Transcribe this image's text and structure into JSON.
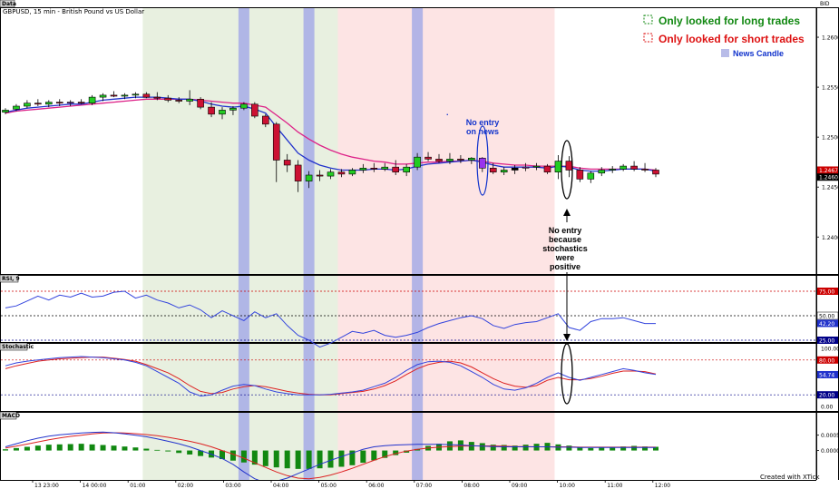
{
  "chart_data": {
    "type": "candlestick",
    "title": "GBPUSD, 15 min - British Pound vs US Dollar",
    "panel_label": "Data",
    "bid_label": "BID",
    "price_axis": {
      "ylim": [
        1.2363,
        1.263
      ],
      "ticks": [
        "1.2600",
        "1.2550",
        "1.2500",
        "1.2450",
        "1.2400"
      ]
    },
    "price_tags": [
      {
        "value": 1.2467,
        "text": "1.2467",
        "color": "#cc0000"
      },
      {
        "value": 1.246,
        "text": "1.2460",
        "color": "#000000"
      }
    ],
    "time_labels": [
      "13 23:00",
      "14 00:00",
      "01:00",
      "02:00",
      "03:00",
      "04:00",
      "05:00",
      "06:00",
      "07:00",
      "08:00",
      "09:00",
      "10:00",
      "11:00",
      "12:00"
    ],
    "candles": [
      {
        "o": 1.2525,
        "h": 1.2529,
        "l": 1.2523,
        "c": 1.2527
      },
      {
        "o": 1.2528,
        "h": 1.2533,
        "l": 1.2526,
        "c": 1.2531
      },
      {
        "o": 1.2531,
        "h": 1.2537,
        "l": 1.2529,
        "c": 1.2534
      },
      {
        "o": 1.2534,
        "h": 1.2538,
        "l": 1.2531,
        "c": 1.2533
      },
      {
        "o": 1.2533,
        "h": 1.2537,
        "l": 1.253,
        "c": 1.2535
      },
      {
        "o": 1.2535,
        "h": 1.2538,
        "l": 1.2531,
        "c": 1.2534
      },
      {
        "o": 1.2534,
        "h": 1.2537,
        "l": 1.2531,
        "c": 1.2535
      },
      {
        "o": 1.2535,
        "h": 1.2538,
        "l": 1.2533,
        "c": 1.2534
      },
      {
        "o": 1.2534,
        "h": 1.2542,
        "l": 1.2532,
        "c": 1.254
      },
      {
        "o": 1.254,
        "h": 1.2544,
        "l": 1.2536,
        "c": 1.2542
      },
      {
        "o": 1.2542,
        "h": 1.2546,
        "l": 1.254,
        "c": 1.2541
      },
      {
        "o": 1.2541,
        "h": 1.2544,
        "l": 1.2538,
        "c": 1.2542
      },
      {
        "o": 1.2542,
        "h": 1.2545,
        "l": 1.2539,
        "c": 1.2543
      },
      {
        "o": 1.2543,
        "h": 1.2545,
        "l": 1.2539,
        "c": 1.254
      },
      {
        "o": 1.254,
        "h": 1.2545,
        "l": 1.2537,
        "c": 1.2539
      },
      {
        "o": 1.2539,
        "h": 1.2542,
        "l": 1.2535,
        "c": 1.2537
      },
      {
        "o": 1.2537,
        "h": 1.254,
        "l": 1.2534,
        "c": 1.2536
      },
      {
        "o": 1.2536,
        "h": 1.2547,
        "l": 1.2532,
        "c": 1.2538
      },
      {
        "o": 1.2538,
        "h": 1.254,
        "l": 1.2528,
        "c": 1.253
      },
      {
        "o": 1.253,
        "h": 1.2535,
        "l": 1.252,
        "c": 1.2523
      },
      {
        "o": 1.2523,
        "h": 1.253,
        "l": 1.2518,
        "c": 1.2527
      },
      {
        "o": 1.2527,
        "h": 1.2531,
        "l": 1.2522,
        "c": 1.2529
      },
      {
        "o": 1.2529,
        "h": 1.2535,
        "l": 1.2527,
        "c": 1.2533
      },
      {
        "o": 1.2533,
        "h": 1.2535,
        "l": 1.2519,
        "c": 1.2521
      },
      {
        "o": 1.2521,
        "h": 1.2523,
        "l": 1.251,
        "c": 1.2513
      },
      {
        "o": 1.2513,
        "h": 1.2515,
        "l": 1.2455,
        "c": 1.2477
      },
      {
        "o": 1.2477,
        "h": 1.2483,
        "l": 1.2465,
        "c": 1.2472
      },
      {
        "o": 1.2472,
        "h": 1.2477,
        "l": 1.2445,
        "c": 1.2456
      },
      {
        "o": 1.2456,
        "h": 1.2466,
        "l": 1.2449,
        "c": 1.2462
      },
      {
        "o": 1.2462,
        "h": 1.2467,
        "l": 1.2456,
        "c": 1.2461
      },
      {
        "o": 1.2461,
        "h": 1.2468,
        "l": 1.2458,
        "c": 1.2465
      },
      {
        "o": 1.2465,
        "h": 1.2468,
        "l": 1.246,
        "c": 1.2463
      },
      {
        "o": 1.2463,
        "h": 1.2469,
        "l": 1.2461,
        "c": 1.2467
      },
      {
        "o": 1.2467,
        "h": 1.2473,
        "l": 1.2464,
        "c": 1.2469
      },
      {
        "o": 1.2469,
        "h": 1.2474,
        "l": 1.2465,
        "c": 1.2468
      },
      {
        "o": 1.2468,
        "h": 1.2474,
        "l": 1.2466,
        "c": 1.247
      },
      {
        "o": 1.247,
        "h": 1.2477,
        "l": 1.2462,
        "c": 1.2465
      },
      {
        "o": 1.2465,
        "h": 1.2473,
        "l": 1.2461,
        "c": 1.247
      },
      {
        "o": 1.247,
        "h": 1.2484,
        "l": 1.2467,
        "c": 1.248
      },
      {
        "o": 1.248,
        "h": 1.2485,
        "l": 1.2476,
        "c": 1.2478
      },
      {
        "o": 1.2478,
        "h": 1.2483,
        "l": 1.2474,
        "c": 1.2476
      },
      {
        "o": 1.2476,
        "h": 1.2484,
        "l": 1.2473,
        "c": 1.2478
      },
      {
        "o": 1.2478,
        "h": 1.2482,
        "l": 1.2474,
        "c": 1.2477
      },
      {
        "o": 1.2477,
        "h": 1.248,
        "l": 1.2473,
        "c": 1.2479
      },
      {
        "o": 1.2479,
        "h": 1.248,
        "l": 1.2465,
        "c": 1.2469
      },
      {
        "o": 1.2469,
        "h": 1.2474,
        "l": 1.2463,
        "c": 1.2465
      },
      {
        "o": 1.2465,
        "h": 1.247,
        "l": 1.2462,
        "c": 1.2467
      },
      {
        "o": 1.2467,
        "h": 1.2472,
        "l": 1.2463,
        "c": 1.2469
      },
      {
        "o": 1.2469,
        "h": 1.2474,
        "l": 1.2466,
        "c": 1.247
      },
      {
        "o": 1.247,
        "h": 1.2474,
        "l": 1.2467,
        "c": 1.2471
      },
      {
        "o": 1.2471,
        "h": 1.2473,
        "l": 1.2463,
        "c": 1.2465
      },
      {
        "o": 1.2465,
        "h": 1.2482,
        "l": 1.2458,
        "c": 1.2476
      },
      {
        "o": 1.2476,
        "h": 1.2481,
        "l": 1.246,
        "c": 1.2467
      },
      {
        "o": 1.2467,
        "h": 1.247,
        "l": 1.2455,
        "c": 1.2458
      },
      {
        "o": 1.2458,
        "h": 1.2466,
        "l": 1.2454,
        "c": 1.2464
      },
      {
        "o": 1.2464,
        "h": 1.247,
        "l": 1.2461,
        "c": 1.2467
      },
      {
        "o": 1.2467,
        "h": 1.2471,
        "l": 1.2464,
        "c": 1.2468
      },
      {
        "o": 1.2468,
        "h": 1.2473,
        "l": 1.2466,
        "c": 1.2471
      },
      {
        "o": 1.2471,
        "h": 1.2476,
        "l": 1.2466,
        "c": 1.2468
      },
      {
        "o": 1.2468,
        "h": 1.2474,
        "l": 1.2465,
        "c": 1.2467
      },
      {
        "o": 1.2467,
        "h": 1.2469,
        "l": 1.246,
        "c": 1.2463
      }
    ],
    "candle_colors": {
      "up": "#22cc22",
      "down": "#cc1133",
      "news": "#9933ee",
      "black": "#000000"
    },
    "special_candles": {
      "news": [
        6,
        44,
        48
      ],
      "black": [
        47
      ]
    },
    "ma_fast": [
      1.2525,
      1.2527,
      1.2529,
      1.253,
      1.2531,
      1.2532,
      1.2533,
      1.2533,
      1.2535,
      1.2537,
      1.2538,
      1.2539,
      1.254,
      1.254,
      1.254,
      1.2539,
      1.2538,
      1.2538,
      1.2536,
      1.2533,
      1.2531,
      1.253,
      1.2531,
      1.2528,
      1.2524,
      1.251,
      1.2497,
      1.2484,
      1.2477,
      1.2472,
      1.2469,
      1.2467,
      1.2467,
      1.2467,
      1.2468,
      1.2468,
      1.2467,
      1.2468,
      1.2471,
      1.2473,
      1.2474,
      1.2475,
      1.2476,
      1.2477,
      1.2475,
      1.2472,
      1.247,
      1.247,
      1.247,
      1.247,
      1.2469,
      1.2471,
      1.247,
      1.2467,
      1.2466,
      1.2466,
      1.2467,
      1.2468,
      1.2468,
      1.2468,
      1.2466
    ],
    "ma_slow": [
      1.2524,
      1.2526,
      1.2527,
      1.2528,
      1.2529,
      1.253,
      1.2531,
      1.2532,
      1.2533,
      1.2534,
      1.2535,
      1.2536,
      1.2537,
      1.2538,
      1.2538,
      1.2538,
      1.2538,
      1.2538,
      1.2537,
      1.2536,
      1.2535,
      1.2534,
      1.2534,
      1.2532,
      1.253,
      1.2522,
      1.2514,
      1.2505,
      1.2498,
      1.2492,
      1.2487,
      1.2483,
      1.248,
      1.2478,
      1.2476,
      1.2475,
      1.2473,
      1.2473,
      1.2474,
      1.2475,
      1.2475,
      1.2476,
      1.2476,
      1.2477,
      1.2476,
      1.2474,
      1.2473,
      1.2472,
      1.2472,
      1.2471,
      1.2471,
      1.2471,
      1.2471,
      1.2469,
      1.2468,
      1.2468,
      1.2468,
      1.2468,
      1.2468,
      1.2468,
      1.2467
    ],
    "ma_colors": {
      "fast": "#2233cc",
      "slow": "#dd2288"
    },
    "rsi": {
      "label": "RSI, 9",
      "ylim": [
        25,
        75
      ],
      "levels": [
        {
          "value": 75,
          "text": "75.00",
          "color": "#cc0000"
        },
        {
          "value": 50,
          "text": "50.00",
          "color": "#000000"
        },
        {
          "value": 25,
          "text": "25.00",
          "color": "#000088"
        }
      ],
      "current": {
        "value": 42.2,
        "text": "42.20"
      },
      "values": [
        58,
        60,
        65,
        70,
        66,
        71,
        69,
        73,
        69,
        70,
        74,
        75,
        68,
        71,
        66,
        63,
        58,
        61,
        56,
        48,
        55,
        50,
        45,
        54,
        48,
        52,
        40,
        30,
        25,
        18,
        22,
        28,
        34,
        32,
        35,
        30,
        28,
        30,
        33,
        38,
        42,
        45,
        48,
        50,
        47,
        40,
        37,
        41,
        43,
        44,
        48,
        52,
        38,
        35,
        44,
        47,
        47,
        48,
        45,
        42,
        42
      ],
      "color": "#3344dd"
    },
    "stochastic": {
      "label": "Stochastic",
      "ylim": [
        0,
        100
      ],
      "scale_ticks": [
        "100.00",
        "0.00"
      ],
      "levels": [
        {
          "value": 80,
          "text": "80.00",
          "color": "#cc0000"
        },
        {
          "value": 20,
          "text": "20.00",
          "color": "#000088"
        }
      ],
      "current": {
        "value": 54.74,
        "text": "54.74"
      },
      "k": [
        70,
        75,
        78,
        80,
        82,
        84,
        85,
        86,
        85,
        84,
        82,
        80,
        76,
        70,
        60,
        50,
        40,
        25,
        18,
        20,
        28,
        35,
        38,
        36,
        30,
        25,
        22,
        20,
        20,
        20,
        21,
        23,
        25,
        28,
        34,
        40,
        50,
        62,
        72,
        77,
        78,
        76,
        70,
        60,
        50,
        38,
        30,
        28,
        32,
        40,
        50,
        58,
        50,
        45,
        50,
        55,
        60,
        65,
        62,
        58,
        55
      ],
      "d": [
        65,
        70,
        74,
        78,
        80,
        82,
        83,
        84,
        85,
        85,
        83,
        81,
        78,
        72,
        65,
        58,
        48,
        36,
        26,
        22,
        24,
        30,
        34,
        36,
        34,
        30,
        26,
        23,
        21,
        20,
        20,
        22,
        24,
        26,
        30,
        36,
        44,
        55,
        65,
        72,
        76,
        78,
        75,
        68,
        58,
        48,
        40,
        35,
        33,
        36,
        45,
        50,
        46,
        46,
        48,
        52,
        57,
        61,
        61,
        60,
        56
      ],
      "k_color": "#3344dd",
      "d_color": "#dd2222"
    },
    "macd": {
      "label": "MACD",
      "ylim": [
        -0.0009,
        0.0012
      ],
      "scale_ticks": [
        {
          "value": 0.0005,
          "text": "0.0005"
        },
        {
          "value": 0.0,
          "text": "0.0000"
        }
      ],
      "histogram": [
        4e-05,
        8e-05,
        0.00012,
        0.00016,
        0.00019,
        0.0002,
        0.00021,
        0.00022,
        0.0002,
        0.00018,
        0.00016,
        0.00013,
        0.0001,
        6e-05,
        2e-05,
        -3e-05,
        -8e-05,
        -0.00013,
        -0.00018,
        -0.00023,
        -0.00028,
        -0.00033,
        -0.00039,
        -0.00046,
        -0.00051,
        -0.00055,
        -0.00058,
        -0.0006,
        -0.0006,
        -0.00058,
        -0.00056,
        -0.00053,
        -0.00048,
        -0.0004,
        -0.00032,
        -0.00024,
        -0.00015,
        -7e-05,
        5e-05,
        0.00015,
        0.00022,
        0.0003,
        0.00033,
        0.00028,
        0.00024,
        0.00019,
        0.00018,
        0.00016,
        0.00019,
        0.00022,
        0.00025,
        0.0002,
        0.00016,
        0.0001,
        8e-05,
        9e-05,
        0.00011,
        0.00013,
        0.00015,
        0.00013,
        0.00012
      ],
      "line": [
        0.00012,
        0.00022,
        0.00032,
        0.0004,
        0.00047,
        0.00051,
        0.00054,
        0.00057,
        0.00059,
        0.0006,
        0.00058,
        0.00054,
        0.0005,
        0.00045,
        0.00038,
        0.0003,
        0.00022,
        0.00012,
        0.0,
        -0.00012,
        -0.00026,
        -0.00045,
        -0.0007,
        -0.00092,
        -0.00105,
        -0.001,
        -0.0009,
        -0.00075,
        -0.0006,
        -0.00045,
        -0.00032,
        -0.0002,
        -8e-05,
        4e-05,
        0.00012,
        0.00016,
        0.00018,
        0.00019,
        0.0002,
        0.0002,
        0.0002,
        0.00019,
        0.00018,
        0.00016,
        0.00014,
        0.00013,
        0.00012,
        0.00012,
        0.00012,
        0.00012,
        0.00012,
        0.00011,
        0.00011,
        0.0001,
        0.0001,
        0.0001,
        0.0001,
        0.0001,
        0.0001,
        0.0001,
        0.0001
      ],
      "signal": [
        8e-05,
        0.00014,
        0.00021,
        0.00028,
        0.00035,
        0.00041,
        0.00046,
        0.0005,
        0.00054,
        0.00057,
        0.00058,
        0.00057,
        0.00055,
        0.00052,
        0.00048,
        0.00043,
        0.00037,
        0.0003,
        0.00022,
        0.00012,
        0.0,
        -0.00012,
        -0.00025,
        -0.0004,
        -0.00055,
        -0.0007,
        -0.00082,
        -0.0009,
        -0.00092,
        -0.00088,
        -0.0008,
        -0.0007,
        -0.00058,
        -0.00045,
        -0.00032,
        -0.0002,
        -0.0001,
        -2e-05,
        4e-05,
        8e-05,
        0.00011,
        0.00013,
        0.00014,
        0.00015,
        0.00015,
        0.00015,
        0.00014,
        0.00013,
        0.00013,
        0.00012,
        0.00012,
        0.00012,
        0.00012,
        0.00011,
        0.00011,
        0.00011,
        0.00011,
        0.00011,
        0.00011,
        0.00011,
        0.00011
      ],
      "hist_color": "#118811",
      "line_color": "#2233cc",
      "signal_color": "#dd2222"
    },
    "zones": [
      {
        "type": "long",
        "from": 13,
        "to": 31,
        "color": "#e8f0e0"
      },
      {
        "type": "short",
        "from": 31,
        "to": 51,
        "color": "#fde4e4"
      }
    ],
    "news_bars": [
      22,
      28,
      38
    ],
    "legend": {
      "long": {
        "text": "Only looked for long trades",
        "color": "#118811"
      },
      "short": {
        "text": "Only looked for short trades",
        "color": "#dd1111"
      },
      "news": {
        "text": "News Candle",
        "color": "#1133cc",
        "swatch": "#b8bce8"
      }
    },
    "annotations": {
      "no_entry_news": {
        "lines": [
          "No entry",
          "on news"
        ],
        "color": "#1133cc"
      },
      "no_entry_stoch": {
        "lines": [
          "No entry",
          "because",
          "stochastics",
          "were",
          "positive"
        ],
        "color": "#000000"
      },
      "dot": "."
    },
    "credit": "Created with XTick"
  }
}
